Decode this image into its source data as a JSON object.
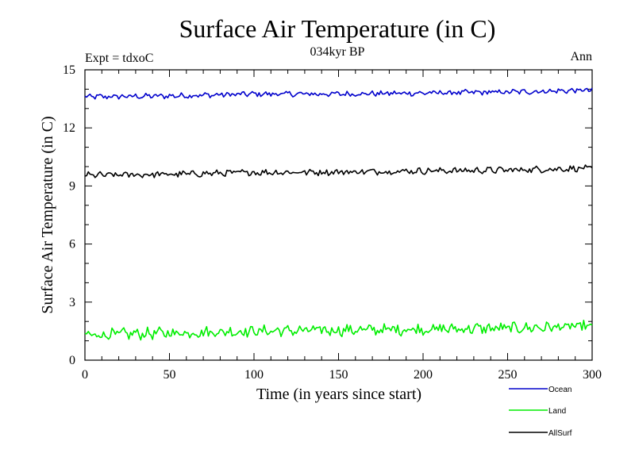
{
  "chart_data": {
    "type": "line",
    "title": "Surface Air Temperature (in C)",
    "subtitle": "034kyr BP",
    "annotation_left": "Expt = tdxoC",
    "annotation_right": "Ann",
    "xlabel": "Time (in years since start)",
    "ylabel": "Surface Air Temperature (in C)",
    "xlim": [
      0,
      300
    ],
    "ylim": [
      0,
      15
    ],
    "x_ticks": [
      0,
      50,
      100,
      150,
      200,
      250,
      300
    ],
    "y_ticks": [
      0,
      3,
      6,
      9,
      12,
      15
    ],
    "grid": false,
    "legend_position": "below-right",
    "series": [
      {
        "name": "Ocean",
        "color": "#0000cc",
        "baseline": [
          [
            0,
            13.6
          ],
          [
            50,
            13.65
          ],
          [
            100,
            13.75
          ],
          [
            150,
            13.75
          ],
          [
            200,
            13.8
          ],
          [
            250,
            13.85
          ],
          [
            300,
            13.95
          ]
        ],
        "noise": 0.12
      },
      {
        "name": "Land",
        "color": "#00ee00",
        "baseline": [
          [
            0,
            1.3
          ],
          [
            50,
            1.4
          ],
          [
            100,
            1.5
          ],
          [
            150,
            1.55
          ],
          [
            200,
            1.6
          ],
          [
            250,
            1.65
          ],
          [
            300,
            1.75
          ]
        ],
        "noise": 0.25
      },
      {
        "name": "AllSurf",
        "color": "#000000",
        "baseline": [
          [
            0,
            9.55
          ],
          [
            50,
            9.6
          ],
          [
            100,
            9.7
          ],
          [
            150,
            9.72
          ],
          [
            200,
            9.78
          ],
          [
            250,
            9.82
          ],
          [
            300,
            9.92
          ]
        ],
        "noise": 0.14
      }
    ]
  }
}
